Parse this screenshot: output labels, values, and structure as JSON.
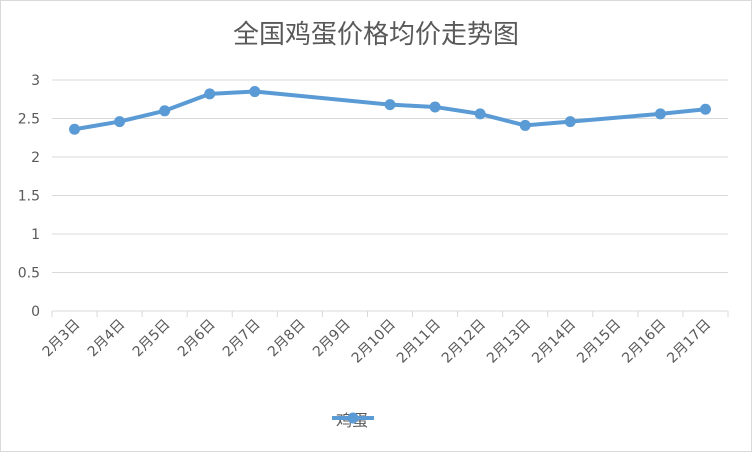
{
  "chart_data": {
    "type": "line",
    "title": "全国鸡蛋价格均价走势图",
    "categories": [
      "2月3日",
      "2月4日",
      "2月5日",
      "2月6日",
      "2月7日",
      "2月8日",
      "2月9日",
      "2月10日",
      "2月11日",
      "2月12日",
      "2月13日",
      "2月14日",
      "2月15日",
      "2月16日",
      "2月17日"
    ],
    "series": [
      {
        "name": "鸡蛋",
        "values": [
          2.36,
          2.46,
          2.6,
          2.82,
          2.85,
          null,
          null,
          2.68,
          2.65,
          2.56,
          2.41,
          2.46,
          null,
          2.56,
          2.62
        ]
      }
    ],
    "ylim": [
      0,
      3
    ],
    "yticks": [
      0,
      0.5,
      1,
      1.5,
      2,
      2.5,
      3
    ],
    "ytick_labels": [
      "0",
      "0.5",
      "1",
      "1.5",
      "2",
      "2.5",
      "3"
    ],
    "grid": true,
    "legend_position": "bottom",
    "line_color": "#5b9bd5",
    "grid_color": "#d9d9d9"
  }
}
